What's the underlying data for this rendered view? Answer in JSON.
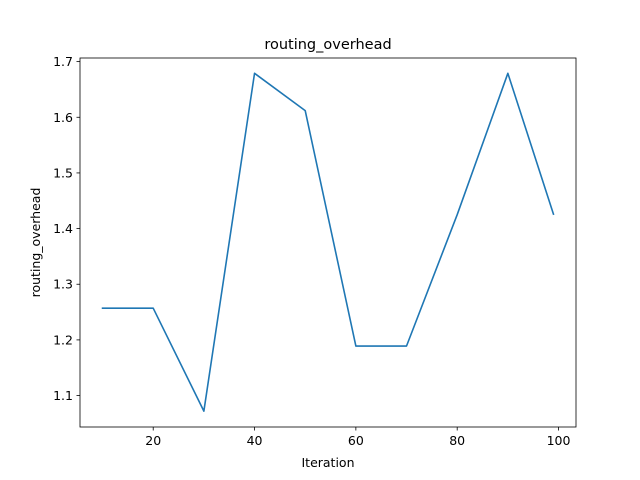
{
  "chart_data": {
    "type": "line",
    "title": "routing_overhead",
    "xlabel": "Iteration",
    "ylabel": "routing_overhead",
    "xlim": [
      5.55,
      103.45
    ],
    "ylim": [
      1.0435,
      1.7065
    ],
    "xticks": [
      20,
      40,
      60,
      80,
      100
    ],
    "yticks": [
      1.1,
      1.2,
      1.3,
      1.4,
      1.5,
      1.6,
      1.7
    ],
    "xtick_labels": [
      "20",
      "40",
      "60",
      "80",
      "100"
    ],
    "ytick_labels": [
      "1.1",
      "1.2",
      "1.3",
      "1.4",
      "1.5",
      "1.6",
      "1.7"
    ],
    "grid": false,
    "series": [
      {
        "color": "#1f77b4",
        "x": [
          10,
          20,
          30,
          40,
          50,
          60,
          70,
          80,
          90,
          99
        ],
        "y": [
          1.257,
          1.257,
          1.072,
          1.679,
          1.612,
          1.189,
          1.189,
          1.425,
          1.679,
          1.426
        ]
      }
    ]
  }
}
